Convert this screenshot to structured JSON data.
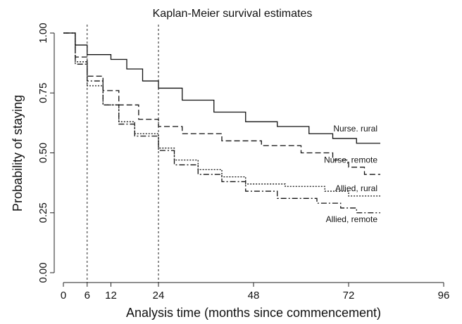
{
  "chart_data": {
    "type": "step-line",
    "title": "Kaplan-Meier survival estimates",
    "xlabel": "Analysis time (months since commencement)",
    "ylabel": "Probability of staying",
    "xlim": [
      0,
      96
    ],
    "xticks": [
      0,
      6,
      12,
      24,
      48,
      72,
      96
    ],
    "ylim": [
      0,
      1
    ],
    "yticks": [
      {
        "value": 0,
        "label": "0.00"
      },
      {
        "value": 0.25,
        "label": "0.25"
      },
      {
        "value": 0.5,
        "label": "0.50"
      },
      {
        "value": 0.75,
        "label": "0.75"
      },
      {
        "value": 1,
        "label": "1.00"
      }
    ],
    "vlines": [
      6,
      24
    ],
    "series": [
      {
        "name": "Nurse. rural",
        "color": "#111111",
        "dash": "none",
        "x": [
          0,
          3,
          6,
          12,
          16,
          20,
          24,
          30,
          38,
          46,
          54,
          62,
          68,
          74,
          80
        ],
        "values": [
          1,
          0.95,
          0.91,
          0.89,
          0.85,
          0.8,
          0.77,
          0.72,
          0.67,
          0.63,
          0.61,
          0.58,
          0.56,
          0.54,
          0.54
        ]
      },
      {
        "name": "Nurse, remote",
        "color": "#111111",
        "dash": "8,4",
        "x": [
          0,
          3,
          6,
          10,
          14,
          19,
          24,
          30,
          40,
          50,
          60,
          68,
          72,
          76,
          80
        ],
        "values": [
          1,
          0.9,
          0.82,
          0.76,
          0.7,
          0.64,
          0.61,
          0.58,
          0.55,
          0.53,
          0.5,
          0.47,
          0.44,
          0.41,
          0.41
        ]
      },
      {
        "name": "Allied, rural",
        "color": "#111111",
        "dash": "2,2",
        "x": [
          0,
          3,
          6,
          10,
          14,
          18,
          24,
          28,
          34,
          40,
          46,
          56,
          66,
          72,
          80
        ],
        "values": [
          1,
          0.88,
          0.78,
          0.7,
          0.63,
          0.58,
          0.52,
          0.47,
          0.43,
          0.4,
          0.37,
          0.36,
          0.34,
          0.32,
          0.32
        ]
      },
      {
        "name": "Allied, remote",
        "color": "#111111",
        "dash": "8,3,2,3",
        "x": [
          0,
          3,
          6,
          10,
          14,
          18,
          24,
          28,
          34,
          40,
          46,
          54,
          64,
          70,
          74,
          80
        ],
        "values": [
          1,
          0.87,
          0.8,
          0.7,
          0.62,
          0.57,
          0.51,
          0.45,
          0.41,
          0.38,
          0.34,
          0.31,
          0.29,
          0.27,
          0.25,
          0.25
        ]
      }
    ]
  }
}
